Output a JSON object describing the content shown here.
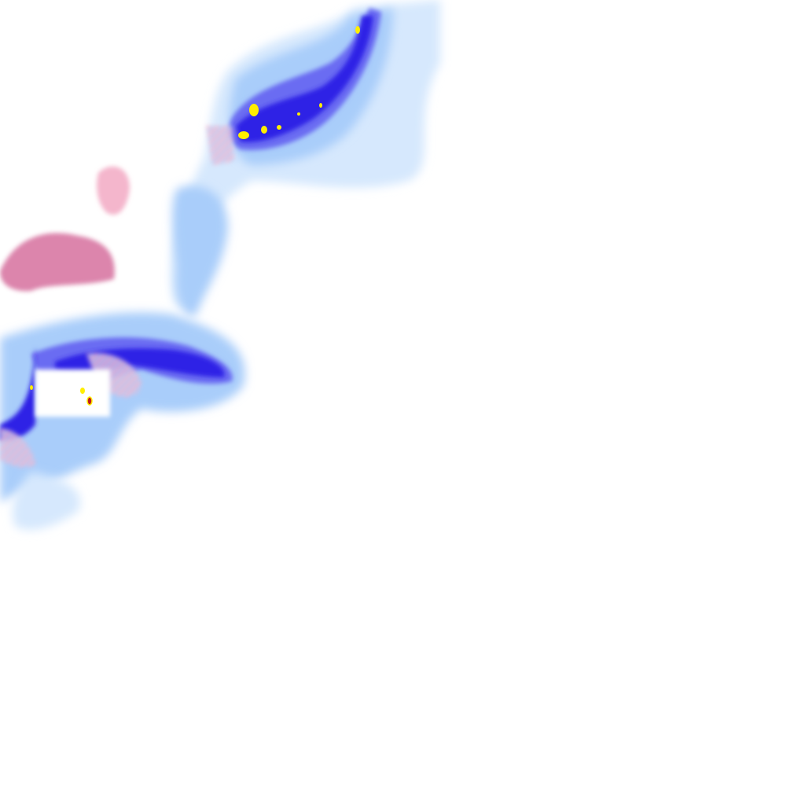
{
  "map": {
    "layer": "precipitation-radar",
    "colors": {
      "background": "#ffffff",
      "light_rain": "#a9cdfa",
      "very_light_rain": "#d6e8fd",
      "moderate_rain": "#6a6cf2",
      "heavy_rain": "#2f22e6",
      "intense_rain": "#ffee00",
      "extreme_rain": "#c01b1b",
      "light_snow_mix": "#f4b6cc",
      "snow_mix": "#d6709e"
    }
  }
}
